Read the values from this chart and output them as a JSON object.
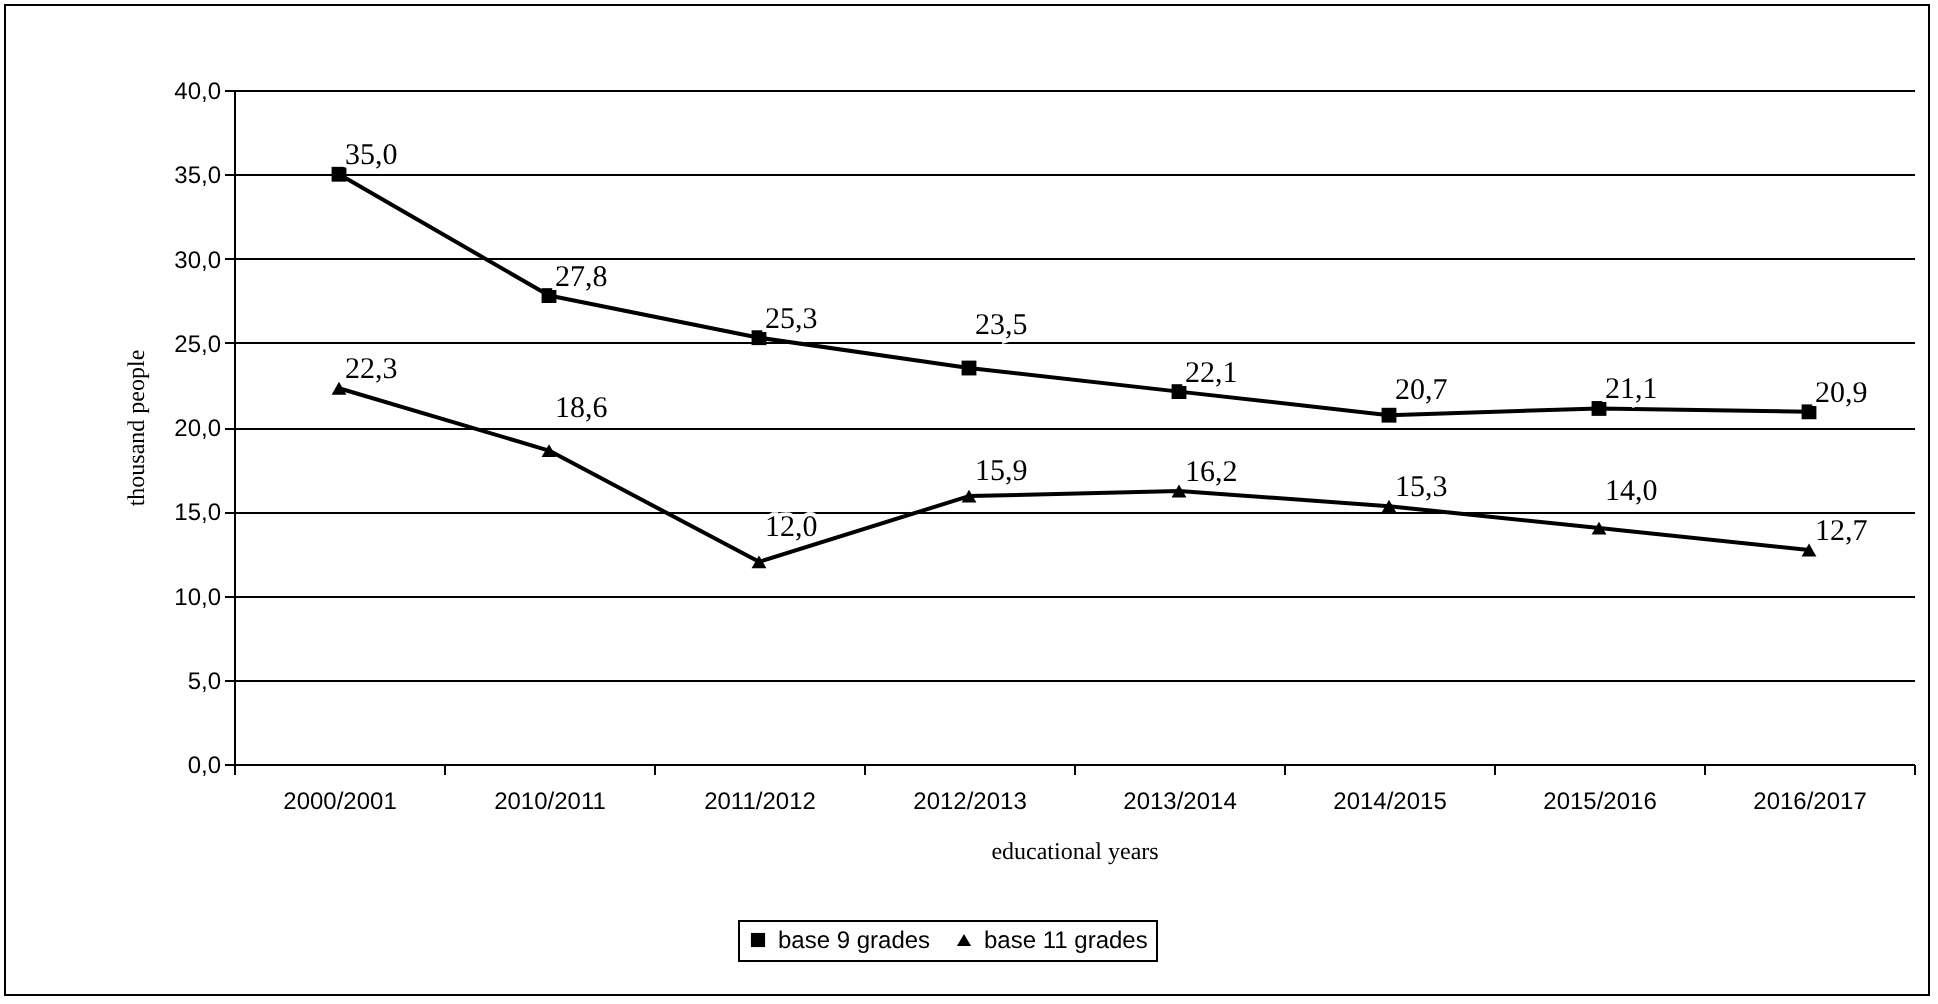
{
  "chart_data": {
    "type": "line",
    "xlabel": "educational years",
    "ylabel": "thousand people",
    "categories": [
      "2000/2001",
      "2010/2011",
      "2011/2012",
      "2012/2013",
      "2013/2014",
      "2014/2015",
      "2015/2016",
      "2016/2017"
    ],
    "series": [
      {
        "name": "base 9 grades",
        "color": "#000000",
        "marker": "square",
        "values": [
          35.0,
          27.8,
          25.3,
          23.5,
          22.1,
          20.7,
          21.1,
          20.9
        ],
        "value_labels": [
          "35,0",
          "27,8",
          "25,3",
          "23,5",
          "22,1",
          "20,7",
          "21,1",
          "20,9"
        ]
      },
      {
        "name": "base 11 grades",
        "color": "#000000",
        "marker": "triangle",
        "values": [
          22.3,
          18.6,
          12.0,
          15.9,
          16.2,
          15.3,
          14.0,
          12.7
        ],
        "value_labels": [
          "22,3",
          "18,6",
          "12,0",
          "15,9",
          "16,2",
          "15,3",
          "14,0",
          "12,7"
        ]
      }
    ],
    "ylim": [
      0,
      40
    ],
    "yticks": [
      {
        "value": 0,
        "label": "0,0"
      },
      {
        "value": 5,
        "label": "5,0"
      },
      {
        "value": 10,
        "label": "10,0"
      },
      {
        "value": 15,
        "label": "15,0"
      },
      {
        "value": 20,
        "label": "20,0"
      },
      {
        "value": 25,
        "label": "25,0"
      },
      {
        "value": 30,
        "label": "30,0"
      },
      {
        "value": 35,
        "label": "35,0"
      },
      {
        "value": 40,
        "label": "40,0"
      }
    ],
    "grid": "y",
    "legend": "bottom",
    "line_style": "solid"
  }
}
